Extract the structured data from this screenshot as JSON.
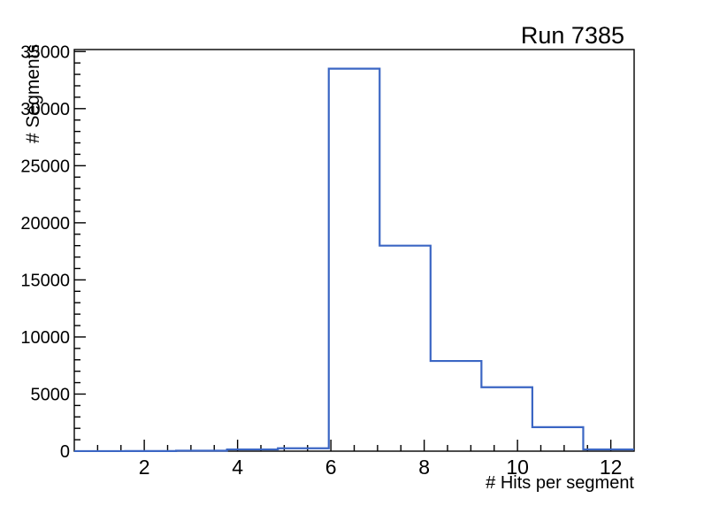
{
  "title": "Run 7385",
  "colors": {
    "histogram_line": "#3b66c4",
    "axis": "#000000",
    "background": "#ffffff"
  },
  "chart_data": {
    "type": "histogram-step",
    "title": "Run 7385",
    "xlabel": "# Hits per segment",
    "ylabel": "# Segments",
    "xlim": [
      0.5,
      12.5
    ],
    "ylim": [
      0,
      35175
    ],
    "bin_edges": [
      0.5,
      1.591,
      2.682,
      3.773,
      4.864,
      5.955,
      7.045,
      8.136,
      9.227,
      10.318,
      11.409,
      12.5
    ],
    "bin_counts": [
      5,
      10,
      40,
      150,
      250,
      33500,
      18000,
      7900,
      5600,
      2100,
      150
    ],
    "x_axis": {
      "major_ticks": [
        2,
        4,
        6,
        8,
        10,
        12
      ],
      "major_labels": [
        "2",
        "4",
        "6",
        "8",
        "10",
        "12"
      ],
      "minor_step": 0.5,
      "minor_first": 1.0,
      "minor_last": 12.0
    },
    "y_axis": {
      "major_ticks": [
        0,
        5000,
        10000,
        15000,
        20000,
        25000,
        30000,
        35000
      ],
      "major_labels": [
        "0",
        "5000",
        "10000",
        "15000",
        "20000",
        "25000",
        "30000",
        "35000"
      ],
      "minor_step": 1000,
      "minor_first": 1000,
      "minor_last": 34000
    },
    "grid": false,
    "legend": null
  }
}
